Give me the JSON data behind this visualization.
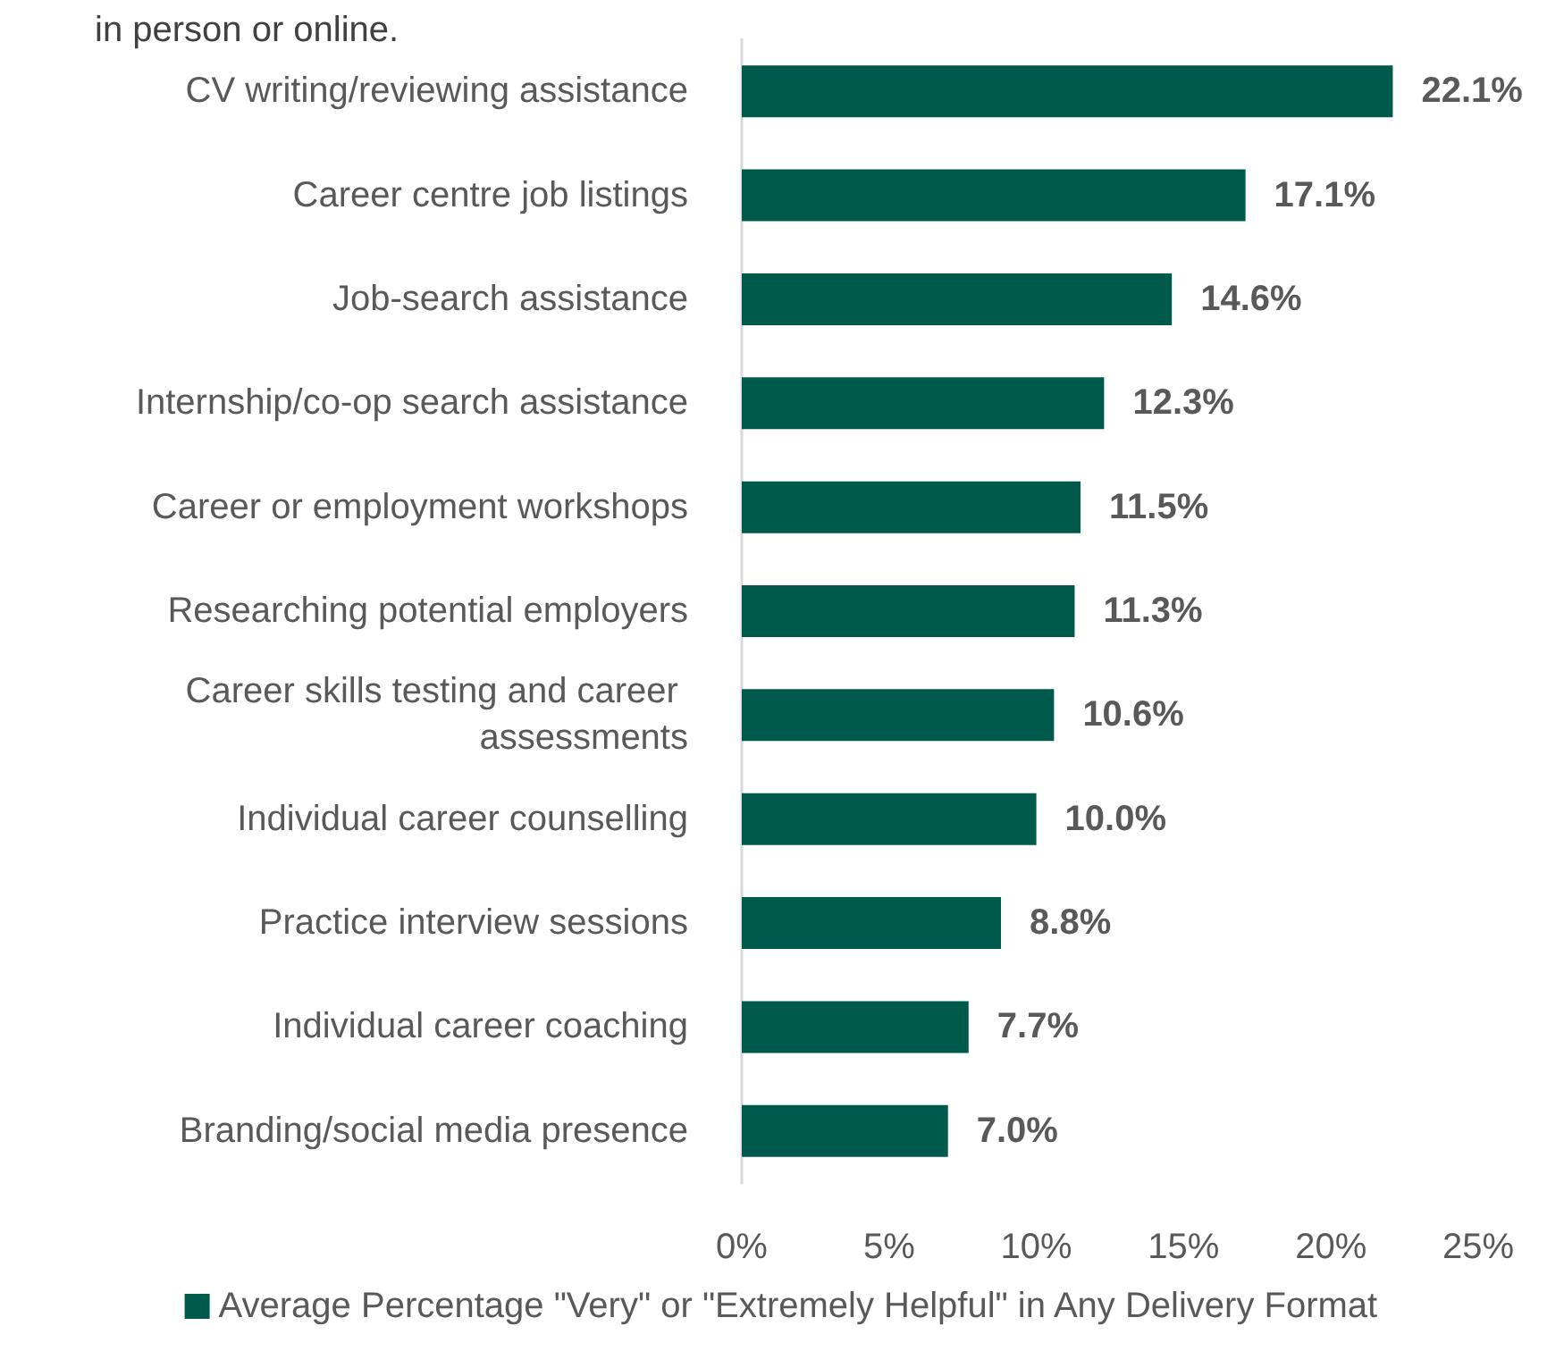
{
  "chart_data": {
    "type": "bar",
    "orientation": "horizontal",
    "title": "in person or online.",
    "categories": [
      "CV writing/reviewing assistance",
      "Career centre job listings",
      "Job-search assistance",
      "Internship/co-op search assistance",
      "Career or employment workshops",
      "Researching potential employers",
      "Career skills testing and career assessments",
      "Individual career counselling",
      "Practice interview sessions",
      "Individual career coaching",
      "Branding/social media presence"
    ],
    "series": [
      {
        "name": "Average Percentage \"Very\" or \"Extremely Helpful\" in Any Delivery Format",
        "color": "#005a4b",
        "values": [
          22.1,
          17.1,
          14.6,
          12.3,
          11.5,
          11.3,
          10.6,
          10.0,
          8.8,
          7.7,
          7.0
        ],
        "value_labels": [
          "22.1%",
          "17.1%",
          "14.6%",
          "12.3%",
          "11.5%",
          "11.3%",
          "10.6%",
          "10.0%",
          "8.8%",
          "7.7%",
          "7.0%"
        ]
      }
    ],
    "xlim": [
      0,
      25
    ],
    "xticks": [
      {
        "value": 0,
        "label": "0%"
      },
      {
        "value": 5,
        "label": "5%"
      },
      {
        "value": 10,
        "label": "10%"
      },
      {
        "value": 15,
        "label": "15%"
      },
      {
        "value": 20,
        "label": "20%"
      },
      {
        "value": 25,
        "label": "25%"
      }
    ],
    "grid": false,
    "legend": "bottom"
  }
}
